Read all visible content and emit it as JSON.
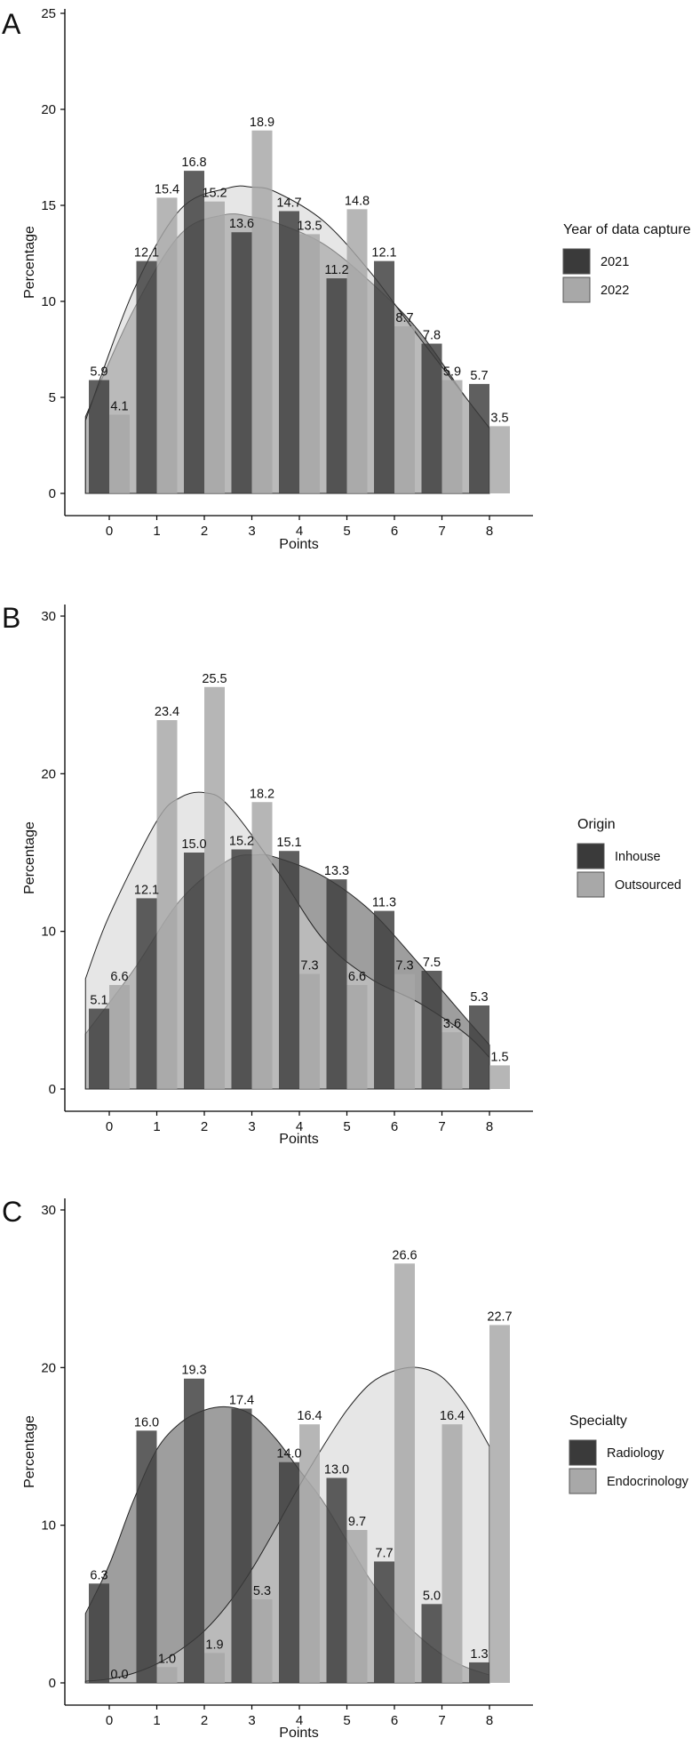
{
  "colors": {
    "series1": "#3c3c3c",
    "series2": "#a6a6a6",
    "overlap": "#787878",
    "density1": "#4f4f4f",
    "density2": "#d2d2d2",
    "axis": "#000000"
  },
  "chart_data": [
    {
      "type": "bar",
      "panel_label": "A",
      "xlabel": "Points",
      "ylabel": "Percentage",
      "ylim": [
        0,
        25
      ],
      "yticks": [
        "0",
        "5",
        "10",
        "15",
        "20",
        "25"
      ],
      "categories": [
        "0",
        "1",
        "2",
        "3",
        "4",
        "5",
        "6",
        "7",
        "8"
      ],
      "legend_title": "Year of data capture",
      "series": [
        {
          "name": "2021",
          "values": [
            5.9,
            12.1,
            16.8,
            13.6,
            14.7,
            11.2,
            12.1,
            7.8,
            5.7
          ],
          "labels": [
            "5.9",
            "12.1",
            "16.8",
            "13.6",
            "14.7",
            "11.2",
            "12.1",
            "7.8",
            "5.7"
          ]
        },
        {
          "name": "2022",
          "values": [
            4.1,
            15.4,
            15.2,
            18.9,
            13.5,
            14.8,
            8.7,
            5.9,
            3.5
          ],
          "labels": [
            "4.1",
            "15.4",
            "15.2",
            "18.9",
            "13.5",
            "14.8",
            "8.7",
            "5.9",
            "3.5"
          ]
        }
      ],
      "density": [
        {
          "series": "2021",
          "x": [
            -0.5,
            0.5,
            1.5,
            2.4,
            3.0,
            3.5,
            4.5,
            5.5,
            6.5,
            7.5,
            8.0
          ],
          "y": [
            4.0,
            9.5,
            13.5,
            14.5,
            14.4,
            14.1,
            13.0,
            11.0,
            8.5,
            5.0,
            3.4
          ]
        },
        {
          "series": "2022",
          "x": [
            -0.5,
            0.5,
            1.5,
            2.5,
            3.0,
            3.5,
            4.5,
            5.5,
            6.5,
            7.5,
            8.0
          ],
          "y": [
            3.8,
            10.5,
            14.8,
            15.9,
            15.95,
            15.7,
            14.2,
            11.5,
            8.2,
            5.0,
            3.4
          ]
        }
      ]
    },
    {
      "type": "bar",
      "panel_label": "B",
      "xlabel": "Points",
      "ylabel": "Percentage",
      "ylim": [
        0,
        32
      ],
      "yticks": [
        "0",
        "10",
        "20",
        "30"
      ],
      "categories": [
        "0",
        "1",
        "2",
        "3",
        "4",
        "5",
        "6",
        "7",
        "8"
      ],
      "legend_title": "Origin",
      "series": [
        {
          "name": "Inhouse",
          "values": [
            5.1,
            12.1,
            15.0,
            15.2,
            15.1,
            13.3,
            11.3,
            7.5,
            5.3
          ],
          "labels": [
            "5.1",
            "12.1",
            "15.0",
            "15.2",
            "15.1",
            "13.3",
            "11.3",
            "7.5",
            "5.3"
          ]
        },
        {
          "name": "Outsourced",
          "values": [
            6.6,
            23.4,
            25.5,
            18.2,
            7.3,
            6.6,
            7.3,
            3.6,
            1.5
          ],
          "labels": [
            "6.6",
            "23.4",
            "25.5",
            "18.2",
            "7.3",
            "6.6",
            "7.3",
            "3.6",
            "1.5"
          ]
        }
      ],
      "density": [
        {
          "series": "Inhouse",
          "x": [
            -0.5,
            0.5,
            1.5,
            2.5,
            3.1,
            3.5,
            4.5,
            5.5,
            6.5,
            7.5,
            8.0
          ],
          "y": [
            3.5,
            7.5,
            12.0,
            14.5,
            14.85,
            14.7,
            13.5,
            11.3,
            8.0,
            4.5,
            2.8
          ]
        },
        {
          "series": "Outsourced",
          "x": [
            -0.5,
            0.0,
            1.0,
            1.5,
            2.0,
            2.5,
            3.5,
            4.5,
            5.5,
            6.5,
            7.5,
            8.0
          ],
          "y": [
            7.0,
            11.0,
            17.0,
            18.5,
            18.8,
            18.0,
            14.0,
            9.5,
            7.0,
            5.5,
            3.5,
            2.0
          ]
        }
      ]
    },
    {
      "type": "bar",
      "panel_label": "C",
      "xlabel": "Points",
      "ylabel": "Percentage",
      "ylim": [
        0,
        32
      ],
      "yticks": [
        "0",
        "10",
        "20",
        "30"
      ],
      "categories": [
        "0",
        "1",
        "2",
        "3",
        "4",
        "5",
        "6",
        "7",
        "8"
      ],
      "legend_title": "Specialty",
      "series": [
        {
          "name": "Radiology",
          "values": [
            6.3,
            16.0,
            19.3,
            17.4,
            14.0,
            13.0,
            7.7,
            5.0,
            1.3
          ],
          "labels": [
            "6.3",
            "16.0",
            "19.3",
            "17.4",
            "14.0",
            "13.0",
            "7.7",
            "5.0",
            "1.3"
          ]
        },
        {
          "name": "Endocrinology",
          "values": [
            0.0,
            1.0,
            1.9,
            5.3,
            16.4,
            9.7,
            26.6,
            16.4,
            22.7
          ],
          "labels": [
            "0.0",
            "1.0",
            "1.9",
            "5.3",
            "16.4",
            "9.7",
            "26.6",
            "16.4",
            "22.7"
          ]
        }
      ],
      "density": [
        {
          "series": "Radiology",
          "x": [
            -0.5,
            0.0,
            0.5,
            1.0,
            1.5,
            2.0,
            2.5,
            3.0,
            3.5,
            4.0,
            4.5,
            5.0,
            5.5,
            6.0,
            6.5,
            7.0,
            7.5,
            8.0
          ],
          "y": [
            4.4,
            7.5,
            11.5,
            14.8,
            16.5,
            17.3,
            17.5,
            17.0,
            15.5,
            13.5,
            11.5,
            9.0,
            6.5,
            4.5,
            3.0,
            1.8,
            1.0,
            0.5
          ]
        },
        {
          "series": "Endocrinology",
          "x": [
            -0.5,
            0.0,
            0.5,
            1.0,
            1.5,
            2.0,
            2.5,
            3.0,
            3.5,
            4.0,
            4.5,
            5.0,
            5.5,
            6.0,
            6.5,
            7.0,
            7.5,
            8.0
          ],
          "y": [
            0.1,
            0.25,
            0.6,
            1.2,
            2.1,
            3.3,
            5.0,
            7.2,
            9.8,
            12.5,
            15.0,
            17.3,
            19.0,
            19.8,
            20.0,
            19.4,
            17.6,
            15.0
          ]
        }
      ]
    }
  ]
}
